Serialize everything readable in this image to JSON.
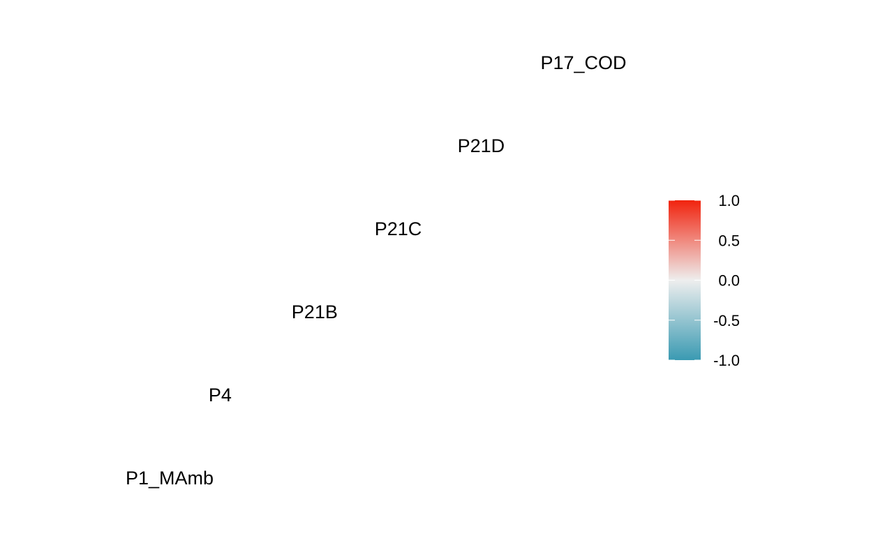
{
  "chart_data": {
    "type": "heatmap",
    "variables": [
      "P1_MAmb",
      "P4",
      "P21B",
      "P21C",
      "P21D",
      "P17_COD"
    ],
    "cells": [],
    "colorbar": {
      "min": -1.0,
      "max": 1.0,
      "ticks": [
        1.0,
        0.5,
        0.0,
        -0.5,
        -1.0
      ],
      "tick_labels": [
        "1.0",
        "0.5",
        "0.0",
        "-0.5",
        "-1.0"
      ],
      "colors": {
        "low": "#3A9AB2",
        "mid": "#EEEEEE",
        "high": "#F1230E"
      }
    }
  }
}
